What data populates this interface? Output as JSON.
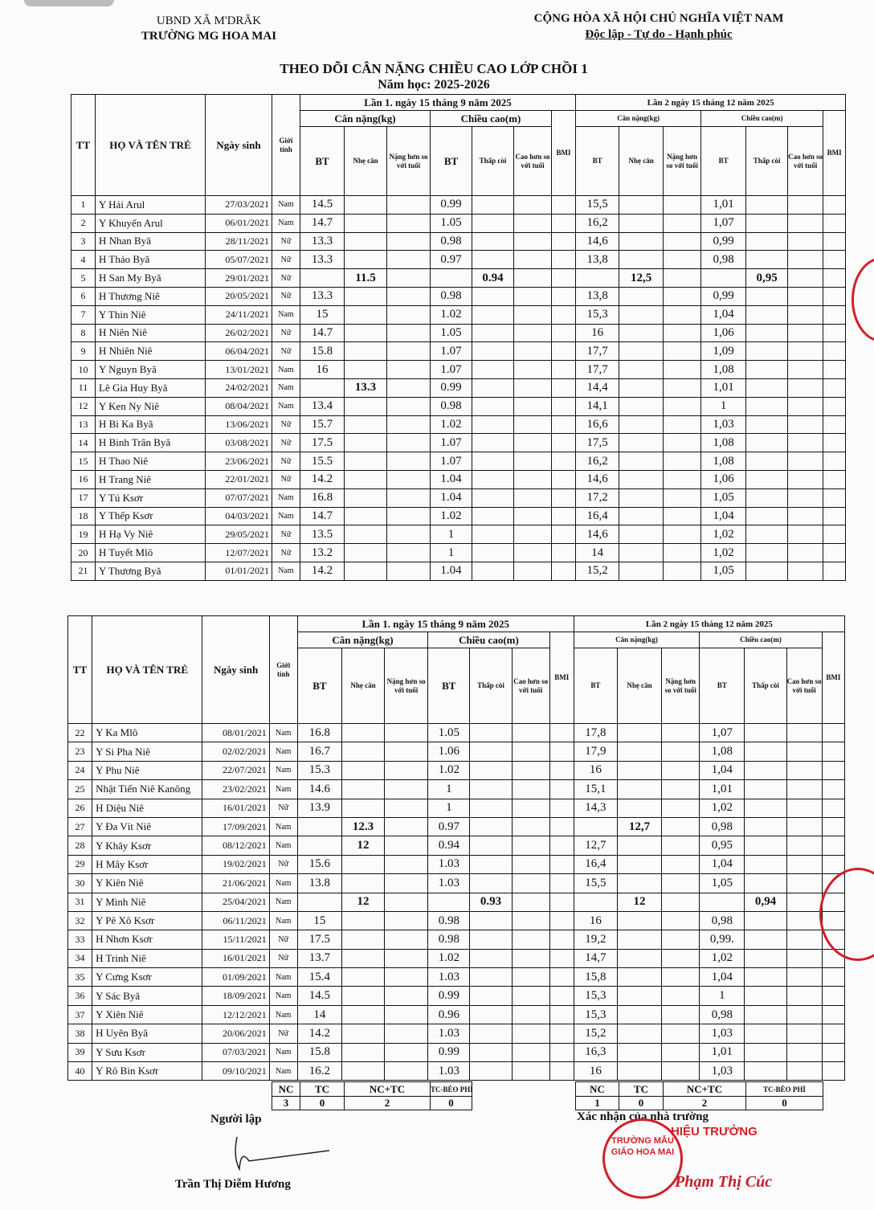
{
  "header": {
    "left1": "UBND XÃ M'DRĂK",
    "left2": "TRƯỜNG MG HOA MAI",
    "right1": "CỘNG HÒA XÃ HỘI CHỦ NGHĨA VIỆT NAM",
    "right2": "Độc lập - Tự do - Hạnh phúc"
  },
  "title": "THEO DÕI CÂN NẶNG CHIỀU CAO LỚP CHỒI 1",
  "subtitle": "Năm học: 2025-2026",
  "columns": {
    "tt": "TT",
    "name": "HỌ VÀ TÊN TRẺ",
    "dob": "Ngày sinh",
    "gender": "Giới tính",
    "lan1": "Lần 1. ngày 15 tháng  9  năm 2025",
    "lan2": "Lần 2  ngày  15 tháng 12  năm 2025",
    "weight": "Cân nặng(kg)",
    "height": "Chiều cao(m)",
    "bt": "BT",
    "nhe": "Nhẹ cân",
    "nang": "Nặng hơn so với tuổi",
    "thap": "Thấp còi",
    "cao": "Cao hơn so với tuổi",
    "bmi": "BMI"
  },
  "rows1": [
    [
      "1",
      "Y Hải Arul",
      "27/03/2021",
      "Nam",
      "14.5",
      "",
      "",
      "0.99",
      "",
      "",
      "",
      "15,5",
      "",
      "",
      "1,01",
      "",
      "",
      ""
    ],
    [
      "2",
      "Y Khuyển Arul",
      "06/01/2021",
      "Nam",
      "14.7",
      "",
      "",
      "1.05",
      "",
      "",
      "",
      "16,2",
      "",
      "",
      "1,07",
      "",
      "",
      ""
    ],
    [
      "3",
      "H Nhan Byă",
      "28/11/2021",
      "Nữ",
      "13.3",
      "",
      "",
      "0.98",
      "",
      "",
      "",
      "14,6",
      "",
      "",
      "0,99",
      "",
      "",
      ""
    ],
    [
      "4",
      "H Thảo Byă",
      "05/07/2021",
      "Nữ",
      "13.3",
      "",
      "",
      "0.97",
      "",
      "",
      "",
      "13,8",
      "",
      "",
      "0,98",
      "",
      "",
      ""
    ],
    [
      "5",
      "H San My Byă",
      "29/01/2021",
      "Nữ",
      "",
      "11.5",
      "",
      "",
      "0.94",
      "",
      "",
      "",
      "12,5",
      "",
      "",
      "0,95",
      "",
      ""
    ],
    [
      "6",
      "H Thương Niê",
      "20/05/2021",
      "Nữ",
      "13.3",
      "",
      "",
      "0.98",
      "",
      "",
      "",
      "13,8",
      "",
      "",
      "0,99",
      "",
      "",
      ""
    ],
    [
      "7",
      "Y Thin Niê",
      "24/11/2021",
      "Nam",
      "15",
      "",
      "",
      "1.02",
      "",
      "",
      "",
      "15,3",
      "",
      "",
      "1,04",
      "",
      "",
      ""
    ],
    [
      "8",
      "H Niên Niê",
      "26/02/2021",
      "Nữ",
      "14.7",
      "",
      "",
      "1.05",
      "",
      "",
      "",
      "16",
      "",
      "",
      "1,06",
      "",
      "",
      ""
    ],
    [
      "9",
      "H Nhiên Niê",
      "06/04/2021",
      "Nữ",
      "15.8",
      "",
      "",
      "1.07",
      "",
      "",
      "",
      "17,7",
      "",
      "",
      "1,09",
      "",
      "",
      ""
    ],
    [
      "10",
      "Y Nguyn Byă",
      "13/01/2021",
      "Nam",
      "16",
      "",
      "",
      "1.07",
      "",
      "",
      "",
      "17,7",
      "",
      "",
      "1,08",
      "",
      "",
      ""
    ],
    [
      "11",
      "Lê Gia Huy Byă",
      "24/02/2021",
      "Nam",
      "",
      "13.3",
      "",
      "0.99",
      "",
      "",
      "",
      "14,4",
      "",
      "",
      "1,01",
      "",
      "",
      ""
    ],
    [
      "12",
      "Y Ken Ny Niê",
      "08/04/2021",
      "Nam",
      "13.4",
      "",
      "",
      "0.98",
      "",
      "",
      "",
      "14,1",
      "",
      "",
      "1",
      "",
      "",
      ""
    ],
    [
      "13",
      "H Bi Ka Byă",
      "13/06/2021",
      "Nữ",
      "15.7",
      "",
      "",
      "1.02",
      "",
      "",
      "",
      "16,6",
      "",
      "",
      "1,03",
      "",
      "",
      ""
    ],
    [
      "14",
      "H Binh Trân Byă",
      "03/08/2021",
      "Nữ",
      "17.5",
      "",
      "",
      "1.07",
      "",
      "",
      "",
      "17,5",
      "",
      "",
      "1,08",
      "",
      "",
      ""
    ],
    [
      "15",
      "H Thao Niê",
      "23/06/2021",
      "Nữ",
      "15.5",
      "",
      "",
      "1.07",
      "",
      "",
      "",
      "16,2",
      "",
      "",
      "1,08",
      "",
      "",
      ""
    ],
    [
      "16",
      "H Trang Niê",
      "22/01/2021",
      "Nữ",
      "14.2",
      "",
      "",
      "1.04",
      "",
      "",
      "",
      "14,6",
      "",
      "",
      "1,06",
      "",
      "",
      ""
    ],
    [
      "17",
      "Y Tú Ksơr",
      "07/07/2021",
      "Nam",
      "16.8",
      "",
      "",
      "1.04",
      "",
      "",
      "",
      "17,2",
      "",
      "",
      "1,05",
      "",
      "",
      ""
    ],
    [
      "18",
      "Y Thếp Ksơr",
      "04/03/2021",
      "Nam",
      "14.7",
      "",
      "",
      "1.02",
      "",
      "",
      "",
      "16,4",
      "",
      "",
      "1,04",
      "",
      "",
      ""
    ],
    [
      "19",
      "H Hạ Vy Niê",
      "29/05/2021",
      "Nữ",
      "13.5",
      "",
      "",
      "1",
      "",
      "",
      "",
      "14,6",
      "",
      "",
      "1,02",
      "",
      "",
      ""
    ],
    [
      "20",
      "H Tuyết Mlô",
      "12/07/2021",
      "Nữ",
      "13.2",
      "",
      "",
      "1",
      "",
      "",
      "",
      "14",
      "",
      "",
      "1,02",
      "",
      "",
      ""
    ],
    [
      "21",
      "Y Thương Byă",
      "01/01/2021",
      "Nam",
      "14.2",
      "",
      "",
      "1.04",
      "",
      "",
      "",
      "15,2",
      "",
      "",
      "1,05",
      "",
      "",
      ""
    ]
  ],
  "rows2": [
    [
      "22",
      "Y Ka Mlô",
      "08/01/2021",
      "Nam",
      "16.8",
      "",
      "",
      "1.05",
      "",
      "",
      "",
      "17,8",
      "",
      "",
      "1,07",
      "",
      "",
      ""
    ],
    [
      "23",
      "Y Si Pha Niê",
      "02/02/2021",
      "Nam",
      "16.7",
      "",
      "",
      "1.06",
      "",
      "",
      "",
      "17,9",
      "",
      "",
      "1,08",
      "",
      "",
      ""
    ],
    [
      "24",
      "Y Phu Niê",
      "22/07/2021",
      "Nam",
      "15.3",
      "",
      "",
      "1.02",
      "",
      "",
      "",
      "16",
      "",
      "",
      "1,04",
      "",
      "",
      ""
    ],
    [
      "25",
      "Nhật Tiến Niê Kanông",
      "23/02/2021",
      "Nam",
      "14.6",
      "",
      "",
      "1",
      "",
      "",
      "",
      "15,1",
      "",
      "",
      "1,01",
      "",
      "",
      ""
    ],
    [
      "26",
      "H Diệu Niê",
      "16/01/2021",
      "Nữ",
      "13.9",
      "",
      "",
      "1",
      "",
      "",
      "",
      "14,3",
      "",
      "",
      "1,02",
      "",
      "",
      ""
    ],
    [
      "27",
      "Y Đa Vít Niê",
      "17/09/2021",
      "Nam",
      "",
      "12.3",
      "",
      "0.97",
      "",
      "",
      "",
      "",
      "12,7",
      "",
      "0,98",
      "",
      "",
      ""
    ],
    [
      "28",
      "Y Khây Ksơr",
      "08/12/2021",
      "Nam",
      "",
      "12",
      "",
      "0.94",
      "",
      "",
      "",
      "12,7",
      "",
      "",
      "0,95",
      "",
      "",
      ""
    ],
    [
      "29",
      "H Mây Ksơr",
      "19/02/2021",
      "Nữ",
      "15.6",
      "",
      "",
      "1.03",
      "",
      "",
      "",
      "16,4",
      "",
      "",
      "1,04",
      "",
      "",
      ""
    ],
    [
      "30",
      "Y Kiên Niê",
      "21/06/2021",
      "Nam",
      "13.8",
      "",
      "",
      "1.03",
      "",
      "",
      "",
      "15,5",
      "",
      "",
      "1,05",
      "",
      "",
      ""
    ],
    [
      "31",
      "Y Minh Niê",
      "25/04/2021",
      "Nam",
      "",
      "12",
      "",
      "",
      "0.93",
      "",
      "",
      "",
      "12",
      "",
      "",
      "0,94",
      "",
      ""
    ],
    [
      "32",
      "Y Pê Xô Ksơr",
      "06/11/2021",
      "Nam",
      "15",
      "",
      "",
      "0.98",
      "",
      "",
      "",
      "16",
      "",
      "",
      "0,98",
      "",
      "",
      ""
    ],
    [
      "33",
      "H Nhơn Ksơr",
      "15/11/2021",
      "Nữ",
      "17.5",
      "",
      "",
      "0.98",
      "",
      "",
      "",
      "19,2",
      "",
      "",
      "0,99.",
      "",
      "",
      ""
    ],
    [
      "34",
      "H Trinh Niê",
      "16/01/2021",
      "Nữ",
      "13.7",
      "",
      "",
      "1.02",
      "",
      "",
      "",
      "14,7",
      "",
      "",
      "1,02",
      "",
      "",
      ""
    ],
    [
      "35",
      "Y Cưng Ksơr",
      "01/09/2021",
      "Nam",
      "15.4",
      "",
      "",
      "1.03",
      "",
      "",
      "",
      "15,8",
      "",
      "",
      "1,04",
      "",
      "",
      ""
    ],
    [
      "36",
      "Y Sác Byă",
      "18/09/2021",
      "Nam",
      "14.5",
      "",
      "",
      "0.99",
      "",
      "",
      "",
      "15,3",
      "",
      "",
      "1",
      "",
      "",
      ""
    ],
    [
      "37",
      "Y Xiên Niê",
      "12/12/2021",
      "Nam",
      "14",
      "",
      "",
      "0.96",
      "",
      "",
      "",
      "15,3",
      "",
      "",
      "0,98",
      "",
      "",
      ""
    ],
    [
      "38",
      "H Uyên Byă",
      "20/06/2021",
      "Nữ",
      "14.2",
      "",
      "",
      "1.03",
      "",
      "",
      "",
      "15,2",
      "",
      "",
      "1,03",
      "",
      "",
      ""
    ],
    [
      "39",
      "Y Sưu Ksơr",
      "07/03/2021",
      "Nam",
      "15.8",
      "",
      "",
      "0.99",
      "",
      "",
      "",
      "16,3",
      "",
      "",
      "1,01",
      "",
      "",
      ""
    ],
    [
      "40",
      "Y Rô Bin Ksơr",
      "09/10/2021",
      "Nam",
      "16.2",
      "",
      "",
      "1.03",
      "",
      "",
      "",
      "16",
      "",
      "",
      "1,03",
      "",
      "",
      ""
    ]
  ],
  "summary": {
    "labels": [
      "NC",
      "TC",
      "NC+TC",
      "TC-BÉO PHÌ"
    ],
    "lan1": [
      "3",
      "0",
      "2",
      "0"
    ],
    "lan2": [
      "1",
      "0",
      "2",
      "0"
    ]
  },
  "footer": {
    "creator_label": "Người lập",
    "creator_name": "Trần Thị Diễm Hương",
    "approve_label": "Xác nhận của nhà trường",
    "principal_name": "Phạm Thị Cúc",
    "stamp_text": "TRƯỜNG MẪU GIÁO HOA MAI",
    "stamp_title": "HIỆU TRƯỞNG"
  },
  "colors": {
    "stamp": "#d0202a"
  }
}
